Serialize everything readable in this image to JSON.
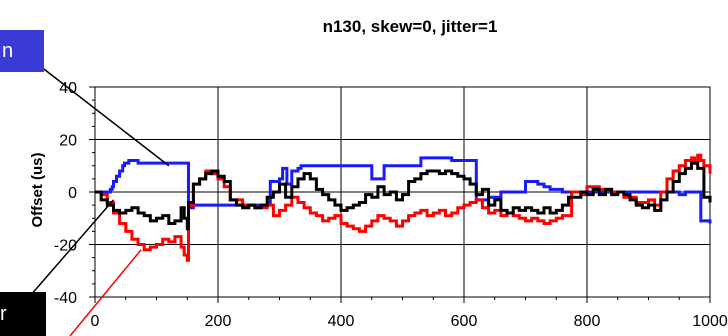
{
  "chart_data": {
    "type": "line",
    "title": "n130, skew=0, jitter=1",
    "xlabel": "",
    "ylabel": "Offset (us)",
    "xlim": [
      0,
      1000
    ],
    "ylim": [
      -40,
      40
    ],
    "x_ticks": [
      0,
      200,
      400,
      600,
      800,
      1000
    ],
    "y_ticks": [
      -40,
      -20,
      0,
      20,
      40
    ],
    "grid": true,
    "legend": "none",
    "series": [
      {
        "color": "#1a1aff",
        "points": [
          [
            0,
            0
          ],
          [
            20,
            0
          ],
          [
            25,
            1
          ],
          [
            28,
            2
          ],
          [
            30,
            4
          ],
          [
            35,
            6
          ],
          [
            40,
            8
          ],
          [
            45,
            10
          ],
          [
            48,
            11
          ],
          [
            55,
            12
          ],
          [
            60,
            12
          ],
          [
            70,
            11
          ],
          [
            80,
            11
          ],
          [
            90,
            11
          ],
          [
            100,
            11
          ],
          [
            120,
            11
          ],
          [
            140,
            11
          ],
          [
            150,
            11
          ],
          [
            152,
            -6
          ],
          [
            160,
            -5
          ],
          [
            200,
            -5
          ],
          [
            250,
            -5
          ],
          [
            270,
            -5
          ],
          [
            280,
            -4
          ],
          [
            285,
            4
          ],
          [
            300,
            5
          ],
          [
            305,
            9
          ],
          [
            312,
            3
          ],
          [
            320,
            8
          ],
          [
            330,
            9
          ],
          [
            335,
            10
          ],
          [
            350,
            10
          ],
          [
            380,
            10
          ],
          [
            400,
            10
          ],
          [
            430,
            10
          ],
          [
            440,
            10
          ],
          [
            450,
            5
          ],
          [
            460,
            5
          ],
          [
            470,
            10
          ],
          [
            480,
            10
          ],
          [
            500,
            10
          ],
          [
            525,
            10
          ],
          [
            530,
            13
          ],
          [
            550,
            13
          ],
          [
            580,
            12
          ],
          [
            590,
            12
          ],
          [
            600,
            12
          ],
          [
            620,
            -3
          ],
          [
            640,
            -2
          ],
          [
            660,
            0
          ],
          [
            680,
            0
          ],
          [
            690,
            0
          ],
          [
            700,
            4
          ],
          [
            710,
            4
          ],
          [
            720,
            3
          ],
          [
            730,
            2
          ],
          [
            740,
            1
          ],
          [
            760,
            0
          ],
          [
            800,
            0
          ],
          [
            830,
            0
          ],
          [
            850,
            0
          ],
          [
            860,
            0
          ],
          [
            870,
            0
          ],
          [
            880,
            0
          ],
          [
            900,
            0
          ],
          [
            920,
            0
          ],
          [
            940,
            0
          ],
          [
            950,
            -1
          ],
          [
            960,
            0
          ],
          [
            980,
            0
          ],
          [
            985,
            -11
          ],
          [
            990,
            -11
          ],
          [
            1000,
            -12
          ]
        ]
      },
      {
        "color": "#ff0000",
        "points": [
          [
            0,
            0
          ],
          [
            10,
            -1
          ],
          [
            20,
            -4
          ],
          [
            30,
            -8
          ],
          [
            40,
            -12
          ],
          [
            50,
            -15
          ],
          [
            60,
            -18
          ],
          [
            70,
            -20
          ],
          [
            80,
            -22
          ],
          [
            90,
            -21
          ],
          [
            100,
            -20
          ],
          [
            110,
            -18
          ],
          [
            120,
            -19
          ],
          [
            130,
            -17
          ],
          [
            140,
            -21
          ],
          [
            145,
            -24
          ],
          [
            150,
            -26
          ],
          [
            152,
            -5
          ],
          [
            160,
            3
          ],
          [
            170,
            5
          ],
          [
            180,
            8
          ],
          [
            190,
            7
          ],
          [
            200,
            5
          ],
          [
            210,
            2
          ],
          [
            220,
            -3
          ],
          [
            240,
            -5
          ],
          [
            260,
            -6
          ],
          [
            280,
            -5
          ],
          [
            290,
            -9
          ],
          [
            300,
            -7
          ],
          [
            310,
            -5
          ],
          [
            320,
            -2
          ],
          [
            330,
            -4
          ],
          [
            340,
            -6
          ],
          [
            350,
            -8
          ],
          [
            360,
            -9
          ],
          [
            370,
            -11
          ],
          [
            380,
            -10
          ],
          [
            390,
            -9
          ],
          [
            400,
            -12
          ],
          [
            410,
            -13
          ],
          [
            420,
            -14
          ],
          [
            430,
            -15
          ],
          [
            440,
            -13
          ],
          [
            450,
            -11
          ],
          [
            460,
            -9
          ],
          [
            470,
            -10
          ],
          [
            480,
            -11
          ],
          [
            490,
            -13
          ],
          [
            500,
            -11
          ],
          [
            510,
            -9
          ],
          [
            520,
            -8
          ],
          [
            530,
            -7
          ],
          [
            540,
            -9
          ],
          [
            550,
            -8
          ],
          [
            560,
            -7
          ],
          [
            570,
            -9
          ],
          [
            580,
            -8
          ],
          [
            590,
            -6
          ],
          [
            600,
            -5
          ],
          [
            610,
            -4
          ],
          [
            620,
            -3
          ],
          [
            630,
            -6
          ],
          [
            640,
            -8
          ],
          [
            650,
            -7
          ],
          [
            660,
            -9
          ],
          [
            670,
            -8
          ],
          [
            680,
            -9
          ],
          [
            690,
            -10
          ],
          [
            700,
            -11
          ],
          [
            710,
            -10
          ],
          [
            720,
            -11
          ],
          [
            730,
            -12
          ],
          [
            740,
            -11
          ],
          [
            750,
            -10
          ],
          [
            760,
            -9
          ],
          [
            775,
            0
          ],
          [
            790,
            -1
          ],
          [
            800,
            2
          ],
          [
            820,
            1
          ],
          [
            840,
            0
          ],
          [
            860,
            -2
          ],
          [
            880,
            -4
          ],
          [
            900,
            -3
          ],
          [
            910,
            -5
          ],
          [
            920,
            0
          ],
          [
            930,
            5
          ],
          [
            940,
            8
          ],
          [
            950,
            10
          ],
          [
            960,
            12
          ],
          [
            970,
            13
          ],
          [
            975,
            11
          ],
          [
            980,
            14
          ],
          [
            985,
            12
          ],
          [
            990,
            10
          ],
          [
            1000,
            7
          ]
        ]
      },
      {
        "color": "#000000",
        "points": [
          [
            0,
            0
          ],
          [
            10,
            -3
          ],
          [
            20,
            -5
          ],
          [
            30,
            -7
          ],
          [
            40,
            -8
          ],
          [
            50,
            -7
          ],
          [
            60,
            -6
          ],
          [
            70,
            -8
          ],
          [
            80,
            -9
          ],
          [
            90,
            -11
          ],
          [
            100,
            -10
          ],
          [
            110,
            -9
          ],
          [
            120,
            -12
          ],
          [
            130,
            -11
          ],
          [
            140,
            -6
          ],
          [
            145,
            -10
          ],
          [
            150,
            -14
          ],
          [
            152,
            -4
          ],
          [
            160,
            3
          ],
          [
            170,
            5
          ],
          [
            180,
            7
          ],
          [
            190,
            8
          ],
          [
            200,
            6
          ],
          [
            210,
            4
          ],
          [
            220,
            -3
          ],
          [
            230,
            -5
          ],
          [
            240,
            -6
          ],
          [
            250,
            -5
          ],
          [
            260,
            -6
          ],
          [
            270,
            -5
          ],
          [
            280,
            -2
          ],
          [
            290,
            0
          ],
          [
            300,
            3
          ],
          [
            310,
            -2
          ],
          [
            320,
            2
          ],
          [
            330,
            5
          ],
          [
            340,
            7
          ],
          [
            350,
            5
          ],
          [
            360,
            1
          ],
          [
            370,
            -1
          ],
          [
            380,
            -3
          ],
          [
            390,
            -5
          ],
          [
            400,
            -7
          ],
          [
            410,
            -6
          ],
          [
            420,
            -5
          ],
          [
            430,
            -4
          ],
          [
            440,
            -1
          ],
          [
            450,
            -2
          ],
          [
            460,
            2
          ],
          [
            470,
            -1
          ],
          [
            480,
            0
          ],
          [
            490,
            -3
          ],
          [
            500,
            -1
          ],
          [
            510,
            4
          ],
          [
            520,
            5
          ],
          [
            530,
            7
          ],
          [
            540,
            8
          ],
          [
            550,
            8
          ],
          [
            560,
            7
          ],
          [
            570,
            8
          ],
          [
            580,
            7
          ],
          [
            590,
            6
          ],
          [
            600,
            5
          ],
          [
            610,
            3
          ],
          [
            620,
            -1
          ],
          [
            630,
            1
          ],
          [
            640,
            -5
          ],
          [
            650,
            -3
          ],
          [
            660,
            -7
          ],
          [
            670,
            -8
          ],
          [
            680,
            -6
          ],
          [
            690,
            -7
          ],
          [
            700,
            -6
          ],
          [
            710,
            -7
          ],
          [
            720,
            -8
          ],
          [
            730,
            -6
          ],
          [
            740,
            -8
          ],
          [
            750,
            -7
          ],
          [
            760,
            -5
          ],
          [
            770,
            -2
          ],
          [
            780,
            -2
          ],
          [
            790,
            0
          ],
          [
            800,
            -1
          ],
          [
            810,
            1
          ],
          [
            820,
            -1
          ],
          [
            830,
            1
          ],
          [
            840,
            -1
          ],
          [
            850,
            0
          ],
          [
            860,
            -1
          ],
          [
            870,
            -3
          ],
          [
            880,
            -5
          ],
          [
            890,
            -6
          ],
          [
            900,
            -5
          ],
          [
            910,
            -7
          ],
          [
            920,
            -3
          ],
          [
            930,
            0
          ],
          [
            940,
            4
          ],
          [
            950,
            7
          ],
          [
            960,
            9
          ],
          [
            970,
            11
          ],
          [
            980,
            9
          ],
          [
            990,
            -2
          ],
          [
            1000,
            -4
          ]
        ]
      }
    ]
  },
  "callouts": {
    "blue_text": "n",
    "black_text": "r"
  }
}
